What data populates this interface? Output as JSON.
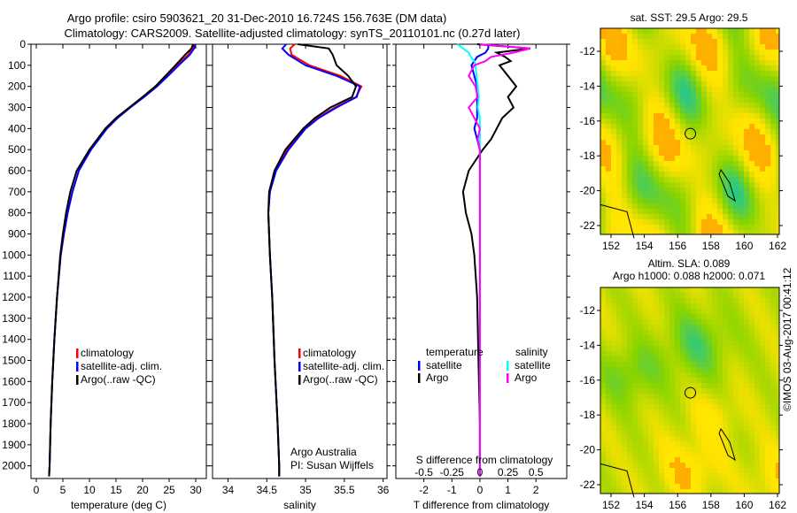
{
  "title_line1": "Argo profile: csiro 5903621_20 31-Dec-2010 16.724S 156.763E (DM data)",
  "title_line2": "Climatology: CARS2009. Satellite-adjusted climatology: synTS_20110101.nc (0.27d later)",
  "colors": {
    "climatology": "#ff0000",
    "satellite": "#0000ff",
    "argo": "#000000",
    "sal_satellite": "#00ffff",
    "sal_argo": "#ff00ff"
  },
  "chart_data": [
    {
      "type": "line",
      "id": "temperature",
      "xlabel": "temperature (deg C)",
      "xlim": [
        -1,
        32
      ],
      "ylim": [
        2060,
        0
      ],
      "xticks": [
        "0",
        "5",
        "10",
        "15",
        "20",
        "25",
        "30"
      ],
      "xtick_values": [
        0,
        5,
        10,
        15,
        20,
        25,
        30
      ],
      "yticks": [
        "0",
        "100",
        "200",
        "300",
        "400",
        "500",
        "600",
        "700",
        "800",
        "900",
        "1000",
        "1100",
        "1200",
        "1300",
        "1400",
        "1500",
        "1600",
        "1700",
        "1800",
        "1900",
        "2000"
      ],
      "legend": [
        "climatology",
        "satellite-adj. clim.",
        "Argo(..raw -QC)"
      ],
      "depth": [
        0,
        20,
        50,
        100,
        150,
        200,
        250,
        300,
        350,
        400,
        500,
        600,
        700,
        800,
        900,
        1000,
        1200,
        1400,
        1600,
        1800,
        2000,
        2050
      ],
      "series": [
        {
          "name": "climatology",
          "values": [
            29.6,
            29.4,
            28.6,
            26.5,
            24.6,
            22.6,
            20.2,
            17.6,
            15.2,
            13.2,
            10.2,
            8.0,
            6.8,
            5.9,
            5.2,
            4.6,
            3.9,
            3.4,
            3.0,
            2.7,
            2.5,
            2.4
          ]
        },
        {
          "name": "satellite-adj. clim.",
          "values": [
            29.9,
            29.7,
            28.9,
            26.8,
            24.8,
            22.7,
            20.3,
            17.7,
            15.3,
            13.3,
            10.3,
            8.0,
            6.8,
            5.9,
            5.2,
            4.6,
            3.9,
            3.4,
            3.0,
            2.7,
            2.5,
            2.4
          ]
        },
        {
          "name": "Argo(..raw -QC)",
          "values": [
            29.5,
            29.2,
            28.0,
            26.2,
            24.3,
            22.4,
            20.0,
            17.5,
            15.0,
            13.0,
            10.0,
            7.6,
            6.4,
            5.6,
            5.0,
            4.5,
            3.9,
            3.4,
            3.0,
            2.7,
            2.5,
            2.4
          ]
        }
      ]
    },
    {
      "type": "line",
      "id": "salinity",
      "xlabel": "salinity",
      "xlim": [
        33.8,
        36.05
      ],
      "ylim": [
        2060,
        0
      ],
      "xticks": [
        "34",
        "34.5",
        "35",
        "35.5",
        "36"
      ],
      "xtick_values": [
        34,
        34.5,
        35,
        35.5,
        36
      ],
      "legend": [
        "climatology",
        "satellite-adj. clim.",
        "Argo(..raw -QC)"
      ],
      "annotation": [
        "Argo Australia",
        "PI: Susan Wijffels"
      ],
      "depth": [
        0,
        20,
        50,
        100,
        150,
        200,
        250,
        300,
        350,
        400,
        500,
        600,
        700,
        800,
        1000,
        1200,
        1500,
        1800,
        2000,
        2050
      ],
      "series": [
        {
          "name": "climatology",
          "values": [
            34.86,
            34.8,
            34.82,
            35.05,
            35.45,
            35.72,
            35.65,
            35.38,
            35.15,
            34.98,
            34.76,
            34.6,
            34.54,
            34.52,
            34.54,
            34.57,
            34.6,
            34.64,
            34.66,
            34.66
          ]
        },
        {
          "name": "satellite-adj. clim.",
          "values": [
            34.75,
            34.7,
            34.78,
            35.0,
            35.4,
            35.7,
            35.66,
            35.4,
            35.17,
            35.0,
            34.78,
            34.62,
            34.54,
            34.52,
            34.54,
            34.57,
            34.6,
            34.64,
            34.66,
            34.66
          ]
        },
        {
          "name": "Argo(..raw -QC)",
          "values": [
            34.9,
            35.3,
            35.35,
            35.4,
            35.55,
            35.65,
            35.6,
            35.32,
            35.12,
            34.97,
            34.74,
            34.6,
            34.53,
            34.52,
            34.54,
            34.57,
            34.6,
            34.64,
            34.66,
            34.66
          ]
        }
      ]
    },
    {
      "type": "line",
      "id": "difference",
      "xlabel": "T difference from climatology",
      "xlabel2": "S difference from climatology",
      "xlim": [
        -3,
        3.1
      ],
      "ylim": [
        2060,
        0
      ],
      "xticks": [
        "-2",
        "-1",
        "0",
        "1",
        "2"
      ],
      "xtick_values": [
        -2,
        -1,
        0,
        1,
        2
      ],
      "xticks2": [
        "-0.5",
        "-0.25",
        "0",
        "0.25",
        "0.5"
      ],
      "xtick2_values": [
        -0.5,
        -0.25,
        0,
        0.25,
        0.5
      ],
      "legend_headers": [
        "temperature",
        "salinity"
      ],
      "legend": [
        "satellite",
        "Argo",
        "satellite",
        "Argo"
      ],
      "depth": [
        0,
        20,
        40,
        60,
        80,
        100,
        150,
        200,
        250,
        300,
        350,
        400,
        450,
        500,
        600,
        700,
        800,
        900,
        1000,
        1200,
        1500,
        1800,
        2000,
        2050
      ],
      "series": [
        {
          "name": "T satellite",
          "values": [
            0.3,
            0.3,
            0.2,
            -0.1,
            -0.2,
            -0.3,
            -0.2,
            -0.1,
            -0.1,
            -0.1,
            -0.1,
            -0.2,
            -0.1,
            0.0,
            0.0,
            0.0,
            0.0,
            0.0,
            0.0,
            0.0,
            0.0,
            0.0,
            0.0,
            0.0
          ]
        },
        {
          "name": "T Argo",
          "values": [
            -0.1,
            1.8,
            0.6,
            0.9,
            1.1,
            0.7,
            1.0,
            1.3,
            1.0,
            1.2,
            0.8,
            0.6,
            0.4,
            0.1,
            -0.4,
            -0.6,
            -0.5,
            -0.3,
            -0.2,
            -0.1,
            -0.05,
            0.0,
            0.0,
            0.0
          ]
        },
        {
          "name": "S satellite",
          "values": [
            -0.2,
            -0.15,
            -0.1,
            -0.08,
            -0.05,
            -0.04,
            -0.03,
            -0.02,
            -0.01,
            -0.02,
            0.0,
            0.0,
            0.0,
            0.0,
            0.0,
            0.0,
            0.0,
            0.0,
            0.0,
            0.0,
            0.0,
            0.0,
            0.0,
            0.0
          ]
        },
        {
          "name": "S Argo",
          "values": [
            0.0,
            0.45,
            0.3,
            0.1,
            0.05,
            -0.05,
            -0.1,
            -0.04,
            -0.02,
            -0.1,
            -0.05,
            0.0,
            -0.02,
            0.0,
            0.0,
            0.0,
            0.0,
            0.0,
            0.0,
            0.0,
            0.0,
            0.0,
            0.0,
            0.0
          ]
        }
      ]
    },
    {
      "type": "heatmap",
      "id": "sst_map",
      "title": "sat. SST: 29.5 Argo: 29.5",
      "xticks": [
        "152",
        "154",
        "156",
        "158",
        "160",
        "162"
      ],
      "yticks": [
        "-12",
        "-14",
        "-16",
        "-18",
        "-20",
        "-22"
      ],
      "float_position": [
        156.763,
        -16.724
      ]
    },
    {
      "type": "heatmap",
      "id": "sla_map",
      "title_line1": "Altim. SLA: 0.089",
      "title_line2": "Argo h1000: 0.088 h2000: 0.071",
      "xticks": [
        "152",
        "154",
        "156",
        "158",
        "160",
        "162"
      ],
      "yticks": [
        "-12",
        "-14",
        "-16",
        "-18",
        "-20",
        "-22"
      ],
      "float_position": [
        156.763,
        -16.724
      ]
    }
  ],
  "footer": "©IMOS 03-Aug-2017 00:41:12"
}
